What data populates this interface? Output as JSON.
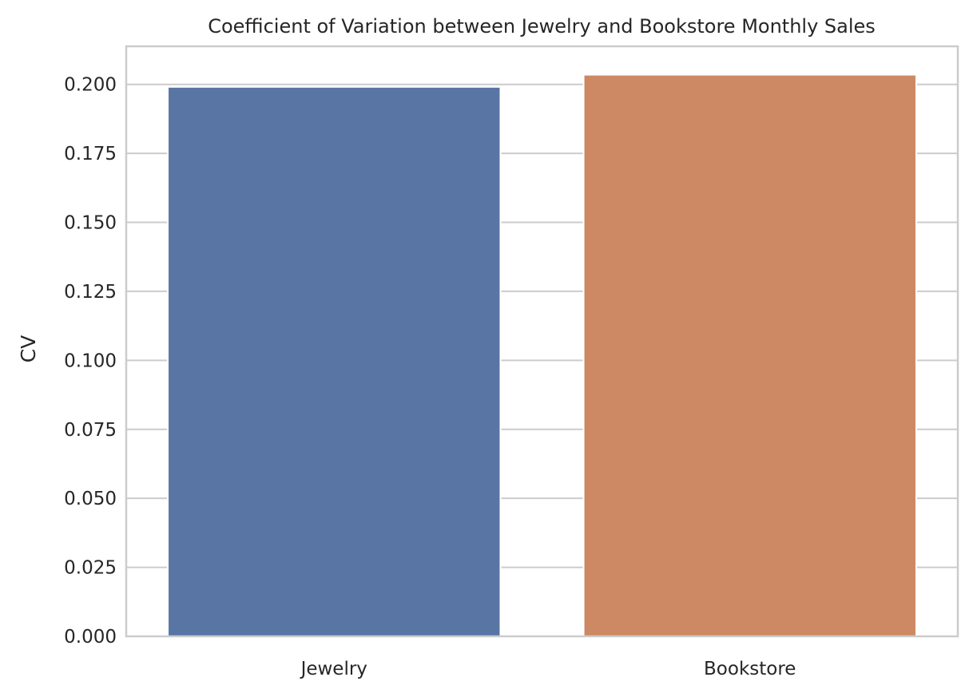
{
  "chart_data": {
    "type": "bar",
    "title": "Coefficient of Variation between Jewelry and Bookstore Monthly Sales",
    "xlabel": "",
    "ylabel": "CV",
    "categories": [
      "Jewelry",
      "Bookstore"
    ],
    "values": [
      0.1991,
      0.2035
    ],
    "colors": [
      "#5975a4",
      "#cc8963"
    ],
    "ylim": [
      0,
      0.2138
    ],
    "yticks": [
      0.0,
      0.025,
      0.05,
      0.075,
      0.1,
      0.125,
      0.15,
      0.175,
      0.2
    ],
    "ytick_labels": [
      "0.000",
      "0.025",
      "0.050",
      "0.075",
      "0.100",
      "0.125",
      "0.150",
      "0.175",
      "0.200"
    ],
    "grid": true,
    "grid_color": "#cccccc",
    "spine_color": "#cccccc",
    "legend": "none"
  }
}
